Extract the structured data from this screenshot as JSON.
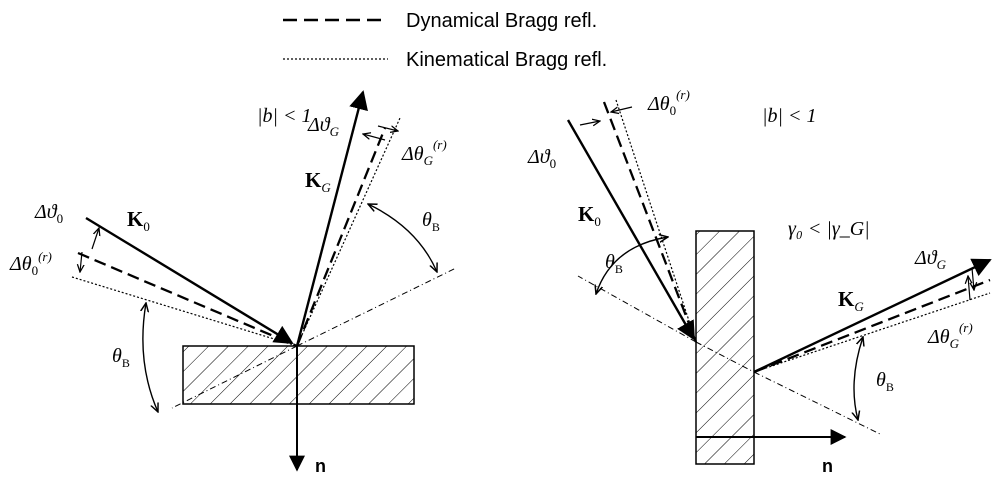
{
  "legend": {
    "dynamical": "Dynamical Bragg refl.",
    "kinematical": "Kinematical Bragg refl."
  },
  "left": {
    "condition": "|b| < 1",
    "labels": {
      "K0": "K",
      "K0_sub": "0",
      "KG": "K",
      "KG_sub": "G",
      "dtheta0_main": "Δϑ",
      "dtheta0_sub": "0",
      "dtheta0r_main": "Δθ",
      "dtheta0r_sub": "0",
      "dtheta0r_sup": "(r)",
      "dthetaG_main": "Δϑ",
      "dthetaG_sub": "G",
      "dthetaGr_main": "Δθ",
      "dthetaGr_sub": "G",
      "dthetaGr_sup": "(r)",
      "thetaB_main": "θ",
      "thetaB_sub": "B",
      "thetaB2_main": "θ",
      "thetaB2_sub": "B",
      "n": "n"
    }
  },
  "right": {
    "condition": "|b| < 1",
    "condition2": "γ₀ < |γ_G|",
    "labels": {
      "K0": "K",
      "K0_sub": "0",
      "KG": "K",
      "KG_sub": "G",
      "dtheta0_main": "Δϑ",
      "dtheta0_sub": "0",
      "dtheta0r_main": "Δθ",
      "dtheta0r_sub": "0",
      "dtheta0r_sup": "(r)",
      "dthetaG_main": "Δϑ",
      "dthetaG_sub": "G",
      "dthetaGr_main": "Δθ",
      "dthetaGr_sub": "G",
      "dthetaGr_sup": "(r)",
      "thetaB_main": "θ",
      "thetaB_sub": "B",
      "thetaB2_main": "θ",
      "thetaB2_sub": "B",
      "n": "n"
    }
  }
}
